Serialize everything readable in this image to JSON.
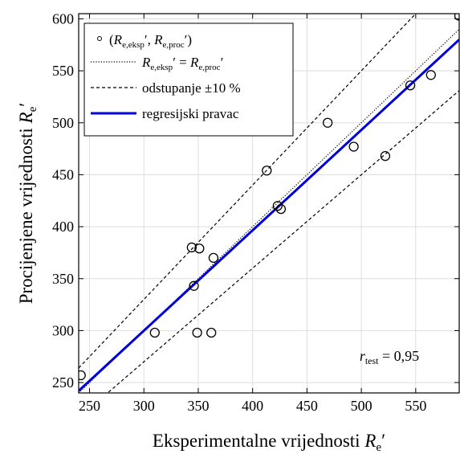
{
  "chart_data": {
    "type": "scatter",
    "xlabel_main": "Eksperimentalne vrijednosti ",
    "xlabel_sym": "R",
    "xlabel_sub": "e",
    "xlabel_prime": "′",
    "ylabel_main": "Procijenjene vrijednosti ",
    "ylabel_sym": "R",
    "ylabel_sub": "e",
    "ylabel_prime": "′",
    "xlim": [
      240,
      590
    ],
    "ylim": [
      240,
      605
    ],
    "xticks": [
      250,
      300,
      350,
      400,
      450,
      500,
      550
    ],
    "yticks": [
      250,
      300,
      350,
      400,
      450,
      500,
      550,
      600
    ],
    "grid": true,
    "legend_position": "top-left",
    "legend": {
      "points_label": {
        "open": "(",
        "sym1": "R",
        "sub1": "e,eksp",
        "mid": "′, ",
        "sym2": "R",
        "sub2": "e,proc",
        "close": "′)"
      },
      "identity_label": {
        "sym1": "R",
        "sub1": "e,eksp",
        "mid": "′ = ",
        "sym2": "R",
        "sub2": "e,proc",
        "close": "′"
      },
      "band_label": "odstupanje ±10 %",
      "regression_label": "regresijski pravac"
    },
    "annotation": {
      "sym": "r",
      "sub": "test",
      "text": " = 0,95"
    },
    "points": [
      {
        "x": 242,
        "y": 257
      },
      {
        "x": 310,
        "y": 298
      },
      {
        "x": 344,
        "y": 380
      },
      {
        "x": 351,
        "y": 379
      },
      {
        "x": 346,
        "y": 343
      },
      {
        "x": 349,
        "y": 298
      },
      {
        "x": 362,
        "y": 298
      },
      {
        "x": 364,
        "y": 370
      },
      {
        "x": 413,
        "y": 454
      },
      {
        "x": 423,
        "y": 420
      },
      {
        "x": 426,
        "y": 417
      },
      {
        "x": 469,
        "y": 500
      },
      {
        "x": 493,
        "y": 477
      },
      {
        "x": 522,
        "y": 468
      },
      {
        "x": 545,
        "y": 536
      },
      {
        "x": 564,
        "y": 546
      },
      {
        "x": 590,
        "y": 603
      }
    ],
    "regression_line": {
      "x": [
        240,
        590
      ],
      "y": [
        242,
        580
      ]
    },
    "band_factor": 0.1,
    "colors": {
      "regression": "#0000dd",
      "grid": "#dddddd",
      "points": "#000000"
    }
  }
}
